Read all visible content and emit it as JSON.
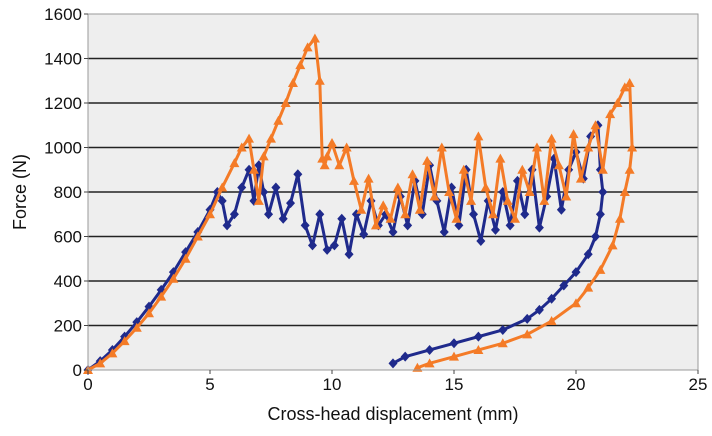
{
  "chart_data": {
    "type": "scatter",
    "title": "",
    "xlabel": "Cross-head displacement (mm)",
    "ylabel": "Force (N)",
    "xlim": [
      0,
      25
    ],
    "ylim": [
      0,
      1600
    ],
    "xticks": [
      0,
      5,
      10,
      15,
      20,
      25
    ],
    "yticks": [
      0,
      200,
      400,
      600,
      800,
      1000,
      1200,
      1400,
      1600
    ],
    "x_tick_labels": [
      "0",
      "5",
      "10",
      "15",
      "20",
      "25"
    ],
    "y_tick_labels": [
      "0",
      "200",
      "400",
      "600",
      "800",
      "1000",
      "1200",
      "1400",
      "1600"
    ],
    "grid": "horizontal",
    "legend": "none",
    "plot_background": "#eeeeee",
    "series": [
      {
        "color": "#1f2a8c",
        "marker": "diamond",
        "x": [
          0,
          0.5,
          1,
          1.5,
          2,
          2.5,
          3,
          3.5,
          4,
          4.5,
          5,
          5.3,
          5.5,
          5.7,
          6.0,
          6.3,
          6.6,
          6.8,
          7.0,
          7.2,
          7.4,
          7.7,
          8.0,
          8.3,
          8.6,
          8.9,
          9.2,
          9.5,
          9.8,
          10.1,
          10.4,
          10.7,
          11.0,
          11.3,
          11.6,
          11.9,
          12.2,
          12.5,
          12.8,
          13.1,
          13.4,
          13.7,
          14.0,
          14.3,
          14.6,
          14.9,
          15.2,
          15.5,
          15.8,
          16.1,
          16.4,
          16.7,
          17.0,
          17.3,
          17.6,
          17.9,
          18.2,
          18.5,
          18.8,
          19.1,
          19.4,
          19.7,
          20.0,
          20.3,
          20.6,
          20.9,
          21.0,
          21.1,
          21.0,
          20.8,
          20.5,
          20.0,
          19.5,
          19.0,
          18.5,
          18.0,
          17.0,
          16.0,
          15.0,
          14.0,
          13.0,
          12.5
        ],
        "y": [
          0,
          40,
          90,
          150,
          215,
          285,
          360,
          440,
          530,
          620,
          720,
          800,
          760,
          650,
          700,
          820,
          900,
          760,
          920,
          800,
          700,
          820,
          680,
          750,
          880,
          650,
          560,
          700,
          540,
          560,
          680,
          520,
          700,
          610,
          760,
          650,
          700,
          620,
          780,
          650,
          850,
          700,
          920,
          760,
          620,
          820,
          650,
          900,
          700,
          580,
          760,
          630,
          800,
          650,
          850,
          700,
          900,
          640,
          780,
          950,
          720,
          900,
          980,
          860,
          1050,
          1100,
          900,
          800,
          700,
          600,
          520,
          440,
          380,
          320,
          270,
          230,
          180,
          150,
          120,
          90,
          60,
          30
        ]
      },
      {
        "color": "#f47b27",
        "marker": "triangle",
        "x": [
          0,
          0.5,
          1,
          1.5,
          2,
          2.5,
          3,
          3.5,
          4,
          4.5,
          5,
          5.5,
          6.0,
          6.3,
          6.6,
          6.8,
          7.0,
          7.2,
          7.5,
          7.8,
          8.1,
          8.4,
          8.7,
          9.0,
          9.3,
          9.5,
          9.6,
          9.7,
          9.8,
          10.0,
          10.3,
          10.6,
          10.9,
          11.2,
          11.5,
          11.8,
          12.1,
          12.4,
          12.7,
          13.0,
          13.3,
          13.6,
          13.9,
          14.2,
          14.5,
          14.8,
          15.1,
          15.4,
          15.7,
          16.0,
          16.3,
          16.6,
          16.9,
          17.2,
          17.5,
          17.8,
          18.1,
          18.4,
          18.7,
          19.0,
          19.3,
          19.6,
          19.9,
          20.2,
          20.5,
          20.8,
          21.1,
          21.4,
          21.7,
          22.0,
          22.2,
          22.3,
          22.2,
          22.0,
          21.8,
          21.5,
          21.0,
          20.5,
          20.0,
          19.0,
          18.0,
          17.0,
          16.0,
          15.0,
          14.0,
          13.5
        ],
        "y": [
          0,
          30,
          75,
          130,
          190,
          255,
          330,
          410,
          500,
          600,
          700,
          820,
          930,
          1000,
          1040,
          900,
          760,
          960,
          1040,
          1120,
          1200,
          1290,
          1370,
          1450,
          1490,
          1300,
          950,
          920,
          960,
          1020,
          920,
          1000,
          850,
          720,
          860,
          650,
          740,
          680,
          820,
          700,
          880,
          720,
          940,
          780,
          1000,
          800,
          680,
          900,
          760,
          1050,
          820,
          700,
          950,
          760,
          680,
          900,
          800,
          1000,
          760,
          1040,
          920,
          780,
          1060,
          860,
          1000,
          1100,
          900,
          1150,
          1200,
          1270,
          1290,
          1000,
          900,
          800,
          680,
          560,
          450,
          370,
          300,
          220,
          160,
          120,
          90,
          60,
          30,
          10
        ]
      }
    ]
  }
}
